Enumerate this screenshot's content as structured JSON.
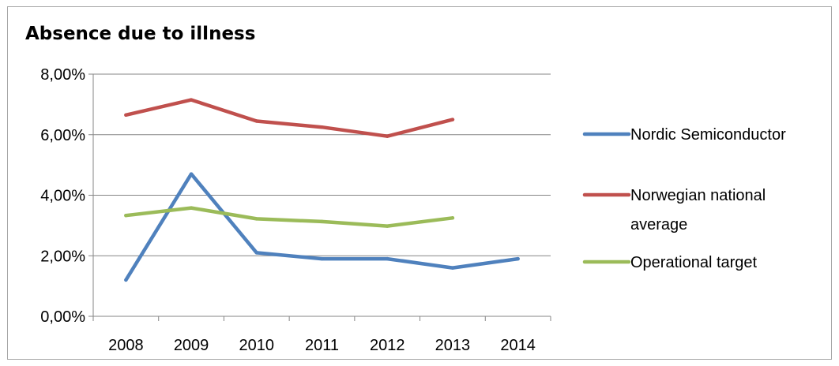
{
  "chart_data": {
    "type": "line",
    "title": "Absence due to illness",
    "xlabel": "",
    "ylabel": "",
    "categories": [
      "2008",
      "2009",
      "2010",
      "2011",
      "2012",
      "2013",
      "2014"
    ],
    "ylim": [
      0,
      8
    ],
    "yticks": [
      0,
      2,
      4,
      6,
      8
    ],
    "ytick_labels": [
      "0,00%",
      "2,00%",
      "4,00%",
      "6,00%",
      "8,00%"
    ],
    "grid": true,
    "legend_placement": "right",
    "series": [
      {
        "name": "Nordic Semiconductor",
        "legend_lines": [
          "Nordic Semiconductor"
        ],
        "color": "#4f81bd",
        "values": [
          1.2,
          4.7,
          2.1,
          1.9,
          1.9,
          1.6,
          1.9
        ]
      },
      {
        "name": "Norwegian national average",
        "legend_lines": [
          "Norwegian national",
          "average"
        ],
        "color": "#c0504d",
        "values": [
          6.65,
          7.15,
          6.45,
          6.25,
          5.95,
          6.5,
          null
        ]
      },
      {
        "name": "Operational target",
        "legend_lines": [
          "Operational target"
        ],
        "color": "#9bbb59",
        "values": [
          3.33,
          3.58,
          3.22,
          3.13,
          2.98,
          3.25,
          null
        ]
      }
    ]
  }
}
